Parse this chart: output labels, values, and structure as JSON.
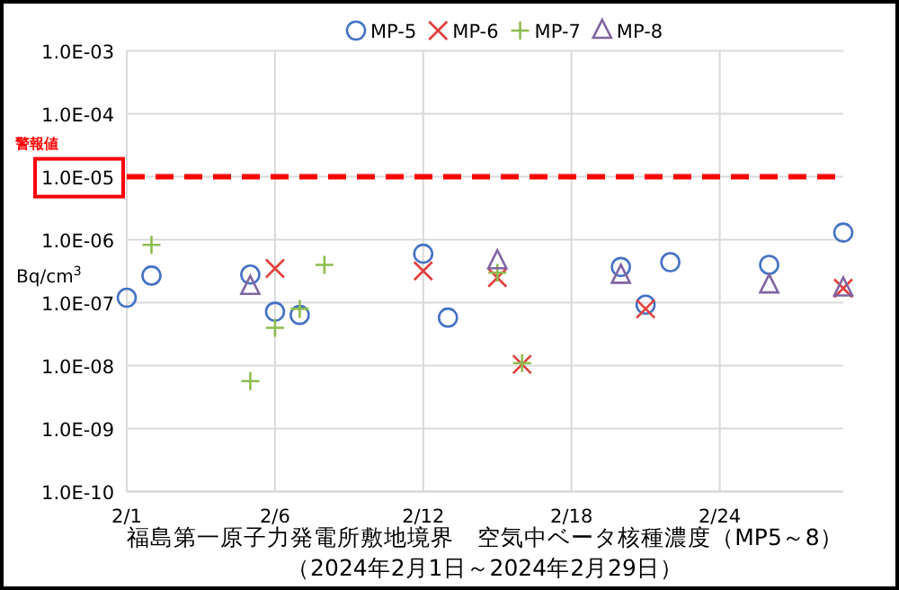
{
  "chart_data": {
    "type": "scatter",
    "title": "福島第一原子力発電所敷地境界　空気中ベータ核種濃度（MP5～8）",
    "subtitle": "（2024年2月1日～2024年2月29日）",
    "ylabel": "Bq/cm$^{3}$",
    "log": "y",
    "grid": true,
    "legend": "top",
    "categories": [
      "2/1",
      null,
      null,
      null,
      null,
      null,
      "2/6",
      null,
      null,
      null,
      null,
      null,
      "2/12",
      null,
      null,
      null,
      null,
      null,
      "2/18",
      null,
      null,
      null,
      null,
      null,
      "2/24",
      null,
      null,
      null,
      null,
      null
    ],
    "ylim": [
      1e-10,
      0.001
    ],
    "yticks": [
      {
        "value": 1e-10,
        "label": "1.0E-10"
      },
      {
        "value": 1e-09,
        "label": "1.0E-09"
      },
      {
        "value": 1e-08,
        "label": "1.0E-08"
      },
      {
        "value": 1e-07,
        "label": "1.0E-07"
      },
      {
        "value": 1e-06,
        "label": "1.0E-06"
      },
      {
        "value": 1e-05,
        "label": "1.0E-05"
      },
      {
        "value": 0.0001,
        "label": "1.0E-04"
      },
      {
        "value": 0.001,
        "label": "1.0E-03"
      }
    ],
    "ref_lines": [
      {
        "axis": "y",
        "value": 1e-05,
        "label": "警報値",
        "color": "#ff0000",
        "line_style": "dashed"
      }
    ],
    "series": [
      {
        "name": "MP-5",
        "color": "#4472c4",
        "marker": "circle",
        "values": [
          1.2e-07,
          2.7e-07,
          null,
          null,
          null,
          2.8e-07,
          7.2e-08,
          6.4e-08,
          null,
          null,
          null,
          null,
          6e-07,
          5.8e-08,
          null,
          null,
          null,
          null,
          null,
          null,
          3.7e-07,
          9.3e-08,
          4.4e-07,
          null,
          null,
          null,
          4e-07,
          null,
          null,
          1.3e-06
        ]
      },
      {
        "name": "MP-6",
        "color": "#e0403c",
        "marker": "cross",
        "values": [
          null,
          null,
          null,
          null,
          null,
          null,
          3.5e-07,
          null,
          null,
          null,
          null,
          null,
          3.2e-07,
          null,
          null,
          2.5e-07,
          1.05e-08,
          null,
          null,
          null,
          null,
          8e-08,
          null,
          null,
          null,
          null,
          null,
          null,
          null,
          1.7e-07
        ]
      },
      {
        "name": "MP-7",
        "color": "#8fbc4f",
        "marker": "plus",
        "values": [
          null,
          8.3e-07,
          null,
          null,
          null,
          5.7e-09,
          4e-08,
          8e-08,
          4e-07,
          null,
          null,
          null,
          null,
          null,
          null,
          3e-07,
          1.1e-08,
          null,
          null,
          null,
          null,
          null,
          null,
          null,
          null,
          null,
          null,
          null,
          null,
          null
        ]
      },
      {
        "name": "MP-8",
        "color": "#8064a2",
        "marker": "triangle",
        "values": [
          null,
          null,
          null,
          null,
          null,
          1.8e-07,
          null,
          null,
          null,
          null,
          null,
          null,
          null,
          null,
          null,
          4.6e-07,
          null,
          null,
          null,
          null,
          2.7e-07,
          null,
          null,
          null,
          null,
          null,
          1.9e-07,
          null,
          null,
          1.7e-07
        ]
      }
    ]
  }
}
